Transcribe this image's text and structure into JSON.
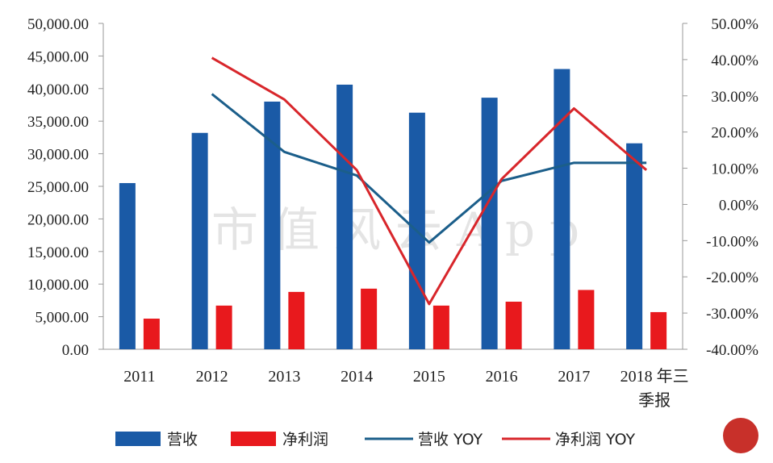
{
  "chart_data": {
    "type": "bar+line",
    "categories": [
      "2011",
      "2012",
      "2013",
      "2014",
      "2015",
      "2016",
      "2017",
      "2018 年三季报"
    ],
    "series": [
      {
        "name": "营收",
        "type": "bar",
        "axis": "left",
        "color": "#1a5aa6",
        "values": [
          25500,
          33200,
          38000,
          40600,
          36300,
          38600,
          43000,
          31600
        ]
      },
      {
        "name": "净利润",
        "type": "bar",
        "axis": "left",
        "color": "#e8191d",
        "values": [
          4700,
          6700,
          8800,
          9300,
          6700,
          7300,
          9100,
          5700
        ]
      },
      {
        "name": "营收 YOY",
        "type": "line",
        "axis": "right",
        "color": "#1b5e8a",
        "values": [
          null,
          0.305,
          0.145,
          0.08,
          -0.105,
          0.065,
          0.115,
          0.115
        ]
      },
      {
        "name": "净利润 YOY",
        "type": "line",
        "axis": "right",
        "color": "#d8262b",
        "values": [
          null,
          0.405,
          0.29,
          0.095,
          -0.275,
          0.07,
          0.265,
          0.095
        ]
      }
    ],
    "left_axis": {
      "ylim": [
        0,
        50000
      ],
      "ticks": [
        "0.00",
        "5,000.00",
        "10,000.00",
        "15,000.00",
        "20,000.00",
        "25,000.00",
        "30,000.00",
        "35,000.00",
        "40,000.00",
        "45,000.00",
        "50,000.00"
      ]
    },
    "right_axis": {
      "ylim": [
        -0.4,
        0.5
      ],
      "ticks": [
        "-40.00%",
        "-30.00%",
        "-20.00%",
        "-10.00%",
        "0.00%",
        "10.00%",
        "20.00%",
        "30.00%",
        "40.00%",
        "50.00%"
      ]
    },
    "x_tick_labels": [
      "2011",
      "2012",
      "2013",
      "2014",
      "2015",
      "2016",
      "2017",
      "2018 年三",
      "季报"
    ],
    "legend_position": "bottom",
    "grid": false
  },
  "watermark": "市值风云App"
}
